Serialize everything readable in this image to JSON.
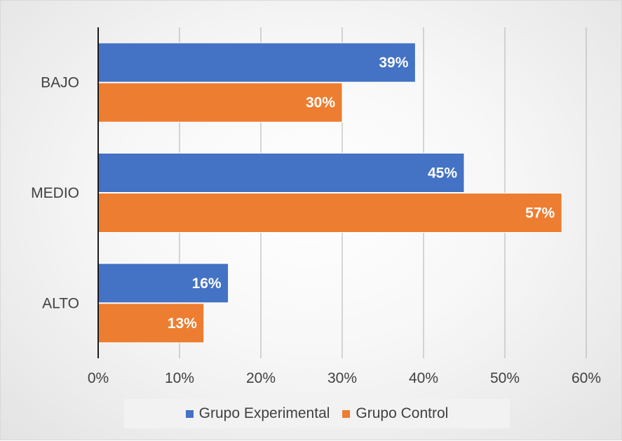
{
  "chart_data": {
    "type": "bar",
    "orientation": "horizontal",
    "categories": [
      "BAJO",
      "MEDIO",
      "ALTO"
    ],
    "series": [
      {
        "name": "Grupo Experimental",
        "values": [
          39,
          45,
          16
        ],
        "labels": [
          "39%",
          "45%",
          "16%"
        ],
        "color": "#4472C4"
      },
      {
        "name": "Grupo Control",
        "values": [
          30,
          57,
          13
        ],
        "labels": [
          "30%",
          "57%",
          "13%"
        ],
        "color": "#ED7D31"
      }
    ],
    "xlim": [
      0,
      60
    ],
    "x_ticks": [
      0,
      10,
      20,
      30,
      40,
      50,
      60
    ],
    "x_tick_labels": [
      "0%",
      "10%",
      "20%",
      "30%",
      "40%",
      "50%",
      "60%"
    ],
    "grid": "vertical",
    "legend_position": "bottom"
  }
}
